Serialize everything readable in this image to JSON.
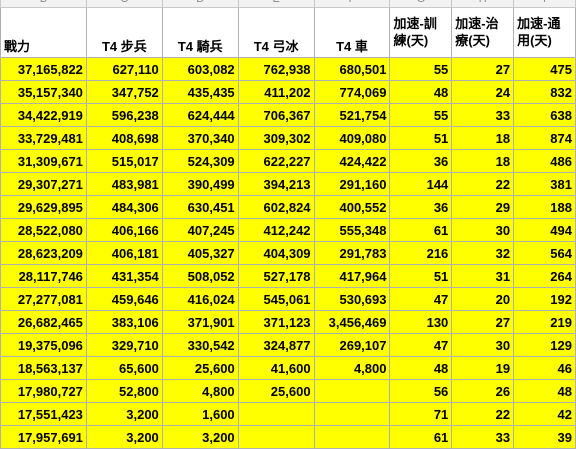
{
  "column_letters": [
    "B",
    "C",
    "D",
    "E",
    "F",
    "G",
    "H",
    "I"
  ],
  "headers": [
    "戰力",
    "T4 步兵",
    "T4 騎兵",
    "T4 弓冰",
    "T4 車",
    "加速-訓練(天)",
    "加速-治療(天)",
    "加速-通用(天)"
  ],
  "rows": [
    [
      "37,165,822",
      "627,110",
      "603,082",
      "762,938",
      "680,501",
      "55",
      "27",
      "475"
    ],
    [
      "35,157,340",
      "347,752",
      "435,435",
      "411,202",
      "774,069",
      "48",
      "24",
      "832"
    ],
    [
      "34,422,919",
      "596,238",
      "624,444",
      "706,367",
      "521,754",
      "55",
      "33",
      "638"
    ],
    [
      "33,729,481",
      "408,698",
      "370,340",
      "309,302",
      "409,080",
      "51",
      "18",
      "874"
    ],
    [
      "31,309,671",
      "515,017",
      "524,309",
      "622,227",
      "424,422",
      "36",
      "18",
      "486"
    ],
    [
      "29,307,271",
      "483,981",
      "390,499",
      "394,213",
      "291,160",
      "144",
      "22",
      "381"
    ],
    [
      "29,629,895",
      "484,306",
      "630,451",
      "602,824",
      "400,552",
      "36",
      "29",
      "188"
    ],
    [
      "28,522,080",
      "406,166",
      "407,245",
      "412,242",
      "555,348",
      "61",
      "30",
      "494"
    ],
    [
      "28,623,209",
      "406,181",
      "405,327",
      "404,309",
      "291,783",
      "216",
      "32",
      "564"
    ],
    [
      "28,117,746",
      "431,354",
      "508,052",
      "527,178",
      "417,964",
      "51",
      "31",
      "264"
    ],
    [
      "27,277,081",
      "459,646",
      "416,024",
      "545,061",
      "530,693",
      "47",
      "20",
      "192"
    ],
    [
      "26,682,465",
      "383,106",
      "371,901",
      "371,123",
      "3,456,469",
      "130",
      "27",
      "219"
    ],
    [
      "19,375,096",
      "329,710",
      "330,542",
      "324,877",
      "269,107",
      "47",
      "30",
      "129"
    ],
    [
      "18,563,137",
      "65,600",
      "25,600",
      "41,600",
      "4,800",
      "48",
      "19",
      "46"
    ],
    [
      "17,980,727",
      "52,800",
      "4,800",
      "25,600",
      "",
      "56",
      "26",
      "48"
    ],
    [
      "17,551,423",
      "3,200",
      "1,600",
      "",
      "",
      "71",
      "22",
      "42"
    ],
    [
      "17,957,691",
      "3,200",
      "3,200",
      "",
      "",
      "61",
      "33",
      "39"
    ]
  ]
}
